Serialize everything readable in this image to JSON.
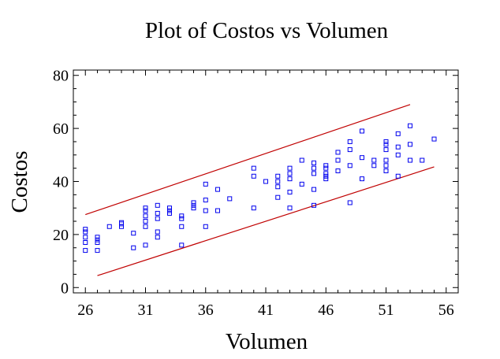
{
  "chart_data": {
    "type": "scatter",
    "title": "Plot of Costos vs Volumen",
    "xlabel": "Volumen",
    "ylabel": "Costos",
    "xlim": [
      25,
      57
    ],
    "ylim": [
      -2,
      82
    ],
    "x_ticks": [
      26,
      31,
      36,
      41,
      46,
      51,
      56
    ],
    "y_ticks": [
      0,
      20,
      40,
      60,
      80
    ],
    "grid": false,
    "colors": {
      "points": "#0000ee",
      "bands": "#c00000",
      "axes": "#000000"
    },
    "series": [
      {
        "values": [
          [
            26,
            14
          ],
          [
            26,
            17
          ],
          [
            26,
            19
          ],
          [
            26,
            21
          ],
          [
            26,
            22
          ],
          [
            27,
            14
          ],
          [
            27,
            17
          ],
          [
            27,
            18
          ],
          [
            27,
            19
          ],
          [
            28,
            23
          ],
          [
            29,
            23
          ],
          [
            29,
            24
          ],
          [
            29,
            24.5
          ],
          [
            30,
            15
          ],
          [
            30,
            20.5
          ],
          [
            31,
            16
          ],
          [
            31,
            23
          ],
          [
            31,
            25
          ],
          [
            31,
            27
          ],
          [
            31,
            29
          ],
          [
            31,
            30
          ],
          [
            32,
            19
          ],
          [
            32,
            21
          ],
          [
            32,
            26
          ],
          [
            32,
            28
          ],
          [
            32,
            31
          ],
          [
            33,
            28
          ],
          [
            33,
            29
          ],
          [
            33,
            30
          ],
          [
            34,
            16
          ],
          [
            34,
            23
          ],
          [
            34,
            26
          ],
          [
            34,
            27
          ],
          [
            35,
            30
          ],
          [
            35,
            31
          ],
          [
            35,
            32
          ],
          [
            36,
            23
          ],
          [
            36,
            29
          ],
          [
            36,
            33
          ],
          [
            36,
            39
          ],
          [
            37,
            29
          ],
          [
            37,
            37
          ],
          [
            38,
            33.5
          ],
          [
            40,
            30
          ],
          [
            40,
            42
          ],
          [
            40,
            45
          ],
          [
            41,
            40
          ],
          [
            42,
            34
          ],
          [
            42,
            38
          ],
          [
            42,
            40
          ],
          [
            42,
            42
          ],
          [
            43,
            30
          ],
          [
            43,
            36
          ],
          [
            43,
            41
          ],
          [
            43,
            43
          ],
          [
            43,
            45
          ],
          [
            44,
            39
          ],
          [
            44,
            48
          ],
          [
            45,
            31
          ],
          [
            45,
            37
          ],
          [
            45,
            43
          ],
          [
            45,
            45
          ],
          [
            45,
            47
          ],
          [
            46,
            41
          ],
          [
            46,
            42
          ],
          [
            46,
            43
          ],
          [
            46,
            45
          ],
          [
            46,
            46
          ],
          [
            47,
            44
          ],
          [
            47,
            48
          ],
          [
            47,
            51
          ],
          [
            48,
            32
          ],
          [
            48,
            46
          ],
          [
            48,
            52
          ],
          [
            48,
            55
          ],
          [
            49,
            41
          ],
          [
            49,
            49
          ],
          [
            49,
            59
          ],
          [
            50,
            46
          ],
          [
            50,
            48
          ],
          [
            51,
            44
          ],
          [
            51,
            46
          ],
          [
            51,
            48
          ],
          [
            51,
            52
          ],
          [
            51,
            54
          ],
          [
            51,
            55
          ],
          [
            52,
            42
          ],
          [
            52,
            50
          ],
          [
            52,
            53
          ],
          [
            52,
            58
          ],
          [
            53,
            48
          ],
          [
            53,
            54
          ],
          [
            53,
            61
          ],
          [
            54,
            48
          ],
          [
            55,
            56
          ]
        ]
      }
    ],
    "bands": [
      {
        "x": [
          26,
          53
        ],
        "y": [
          27.5,
          69
        ]
      },
      {
        "x": [
          27,
          55
        ],
        "y": [
          4.5,
          45.5
        ]
      }
    ]
  }
}
